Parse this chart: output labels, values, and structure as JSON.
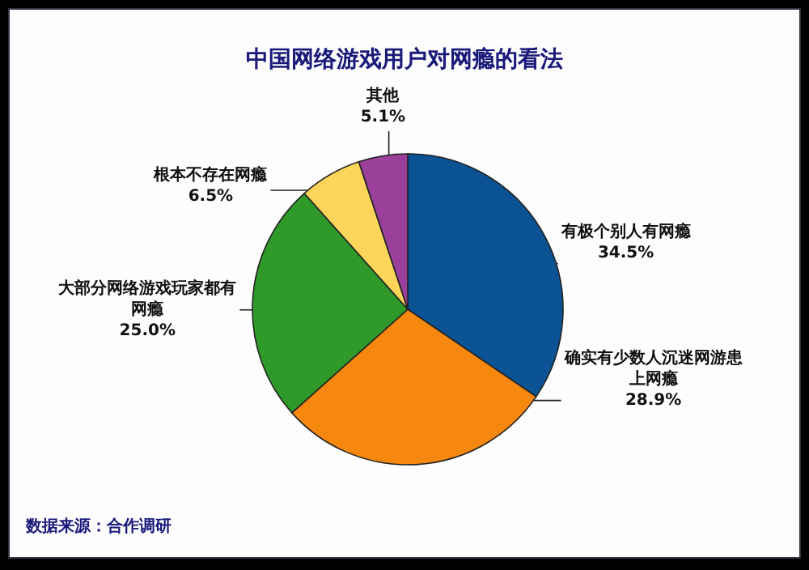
{
  "chart_data": {
    "type": "pie",
    "title": "中国网络游戏用户对网瘾的看法",
    "categories": [
      "有极个别人有网瘾",
      "确实有少数人沉迷网游患上网瘾",
      "大部分网络游戏玩家都有网瘾",
      "根本不存在网瘾",
      "其他"
    ],
    "values": [
      34.5,
      28.9,
      25.0,
      6.5,
      5.1
    ],
    "value_labels": [
      "34.5%",
      "28.9%",
      "25.0%",
      "6.5%",
      "5.1%"
    ],
    "colors": [
      "#0b5394",
      "#f7880f",
      "#2f9a2a",
      "#fcd55a",
      "#9a3f9a"
    ],
    "annotations": [
      "数据来源：合作调研"
    ]
  }
}
